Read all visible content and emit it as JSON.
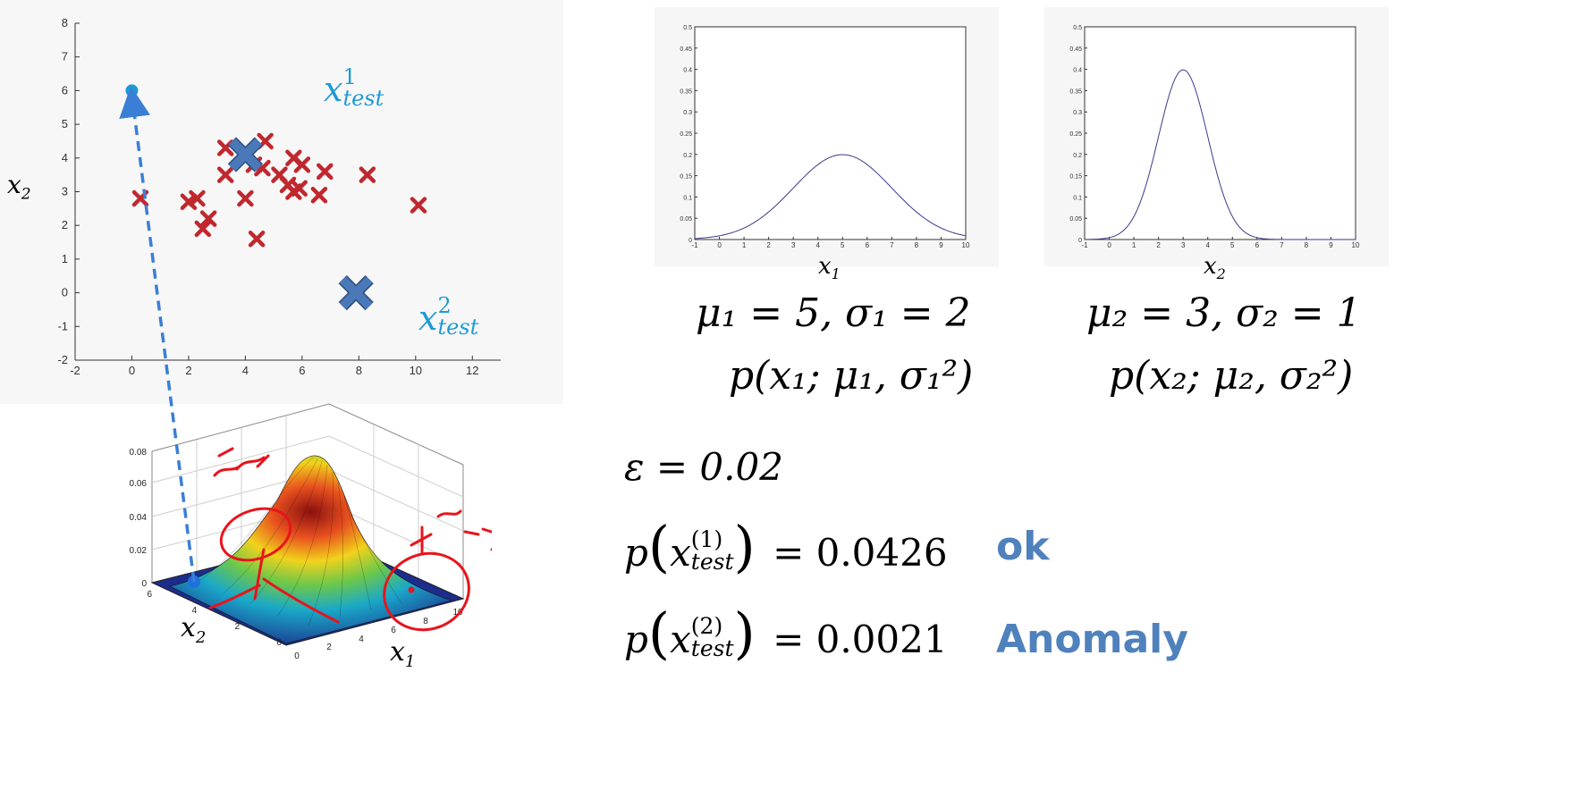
{
  "scatter": {
    "y_axis_label": "x",
    "y_axis_label_sub": "2",
    "x_ticks": [
      "-2",
      "0",
      "2",
      "4",
      "6",
      "8",
      "10",
      "12"
    ],
    "y_ticks": [
      "-2",
      "-1",
      "0",
      "1",
      "2",
      "3",
      "4",
      "5",
      "6",
      "7",
      "8"
    ],
    "test1_label": "x",
    "test1_super": "1",
    "test1_sub": "test",
    "test2_label": "x",
    "test2_super": "2",
    "test2_sub": "test"
  },
  "surface": {
    "z_ticks": [
      "0",
      "0.02",
      "0.04",
      "0.06",
      "0.08"
    ],
    "x2_ticks": [
      "6",
      "4",
      "2",
      "0"
    ],
    "x1_ticks": [
      "0",
      "2",
      "4",
      "6",
      "8",
      "10"
    ],
    "x2_label": "x",
    "x2_sub": "2",
    "x1_label": "x",
    "x1_sub": "1"
  },
  "gauss1": {
    "xlabel": "x",
    "xlabel_sub": "1",
    "x_ticks": [
      "-1",
      "0",
      "1",
      "2",
      "3",
      "4",
      "5",
      "6",
      "7",
      "8",
      "9",
      "10"
    ],
    "y_ticks": [
      "0",
      "0.05",
      "0.1",
      "0.15",
      "0.2",
      "0.25",
      "0.3",
      "0.35",
      "0.4",
      "0.45",
      "0.5"
    ],
    "params": "μ₁ = 5,  σ₁ = 2",
    "pdf_expr": "p(x₁; μ₁, σ₁²)"
  },
  "gauss2": {
    "xlabel": "x",
    "xlabel_sub": "2",
    "x_ticks": [
      "-1",
      "0",
      "1",
      "2",
      "3",
      "4",
      "5",
      "6",
      "7",
      "8",
      "9",
      "10"
    ],
    "y_ticks": [
      "0",
      "0.05",
      "0.1",
      "0.15",
      "0.2",
      "0.25",
      "0.3",
      "0.35",
      "0.4",
      "0.45",
      "0.5"
    ],
    "params": "μ₂ = 3,  σ₂ = 1",
    "pdf_expr": "p(x₂; μ₂, σ₂²)"
  },
  "results": {
    "epsilon_line": "ε = 0.02",
    "p1_lhs": "p",
    "p1_x": "x",
    "p1_super": "(1)",
    "p1_sub": "test",
    "p1_value": "= 0.0426",
    "p1_verdict": "ok",
    "p2_lhs": "p",
    "p2_x": "x",
    "p2_super": "(2)",
    "p2_sub": "test",
    "p2_value": "= 0.0021",
    "p2_verdict": "Anomaly"
  },
  "colors": {
    "cross_red": "#c0282e",
    "test_blue": "#4a78b8",
    "label_blue": "#1e9ad6",
    "verdict_blue": "#4f81bd",
    "annotation_red": "#e8141c",
    "arrow_blue": "#3a7fd5"
  },
  "chart_data": [
    {
      "type": "scatter",
      "xlabel": "",
      "ylabel": "x2",
      "xlim": [
        -2,
        13
      ],
      "ylim": [
        -2,
        8
      ],
      "series": [
        {
          "name": "",
          "marker": "x",
          "points": [
            [
              0.3,
              2.8
            ],
            [
              2.0,
              2.7
            ],
            [
              2.3,
              2.8
            ],
            [
              2.5,
              1.9
            ],
            [
              2.7,
              2.2
            ],
            [
              3.3,
              4.3
            ],
            [
              3.3,
              3.5
            ],
            [
              4.0,
              2.8
            ],
            [
              4.3,
              3.8
            ],
            [
              4.4,
              1.6
            ],
            [
              4.6,
              3.7
            ],
            [
              4.7,
              4.5
            ],
            [
              5.2,
              3.5
            ],
            [
              5.5,
              3.2
            ],
            [
              5.7,
              4.0
            ],
            [
              5.7,
              3.0
            ],
            [
              5.9,
              3.1
            ],
            [
              6.0,
              3.8
            ],
            [
              6.6,
              2.9
            ],
            [
              6.8,
              3.6
            ],
            [
              8.3,
              3.5
            ],
            [
              10.1,
              2.6
            ]
          ]
        },
        {
          "name": "",
          "marker": "big-x",
          "points": [
            [
              4.0,
              4.1
            ],
            [
              7.9,
              0.0
            ]
          ]
        },
        {
          "name": "",
          "marker": "dot",
          "points": [
            [
              0.0,
              6.0
            ]
          ]
        }
      ]
    },
    {
      "type": "line",
      "xlabel": "x1",
      "xlim": [
        -1,
        10
      ],
      "ylim": [
        0,
        0.5
      ],
      "mu": 5,
      "sigma": 2
    },
    {
      "type": "line",
      "xlabel": "x2",
      "xlim": [
        -1,
        10
      ],
      "ylim": [
        0,
        0.5
      ],
      "mu": 3,
      "sigma": 1
    }
  ]
}
